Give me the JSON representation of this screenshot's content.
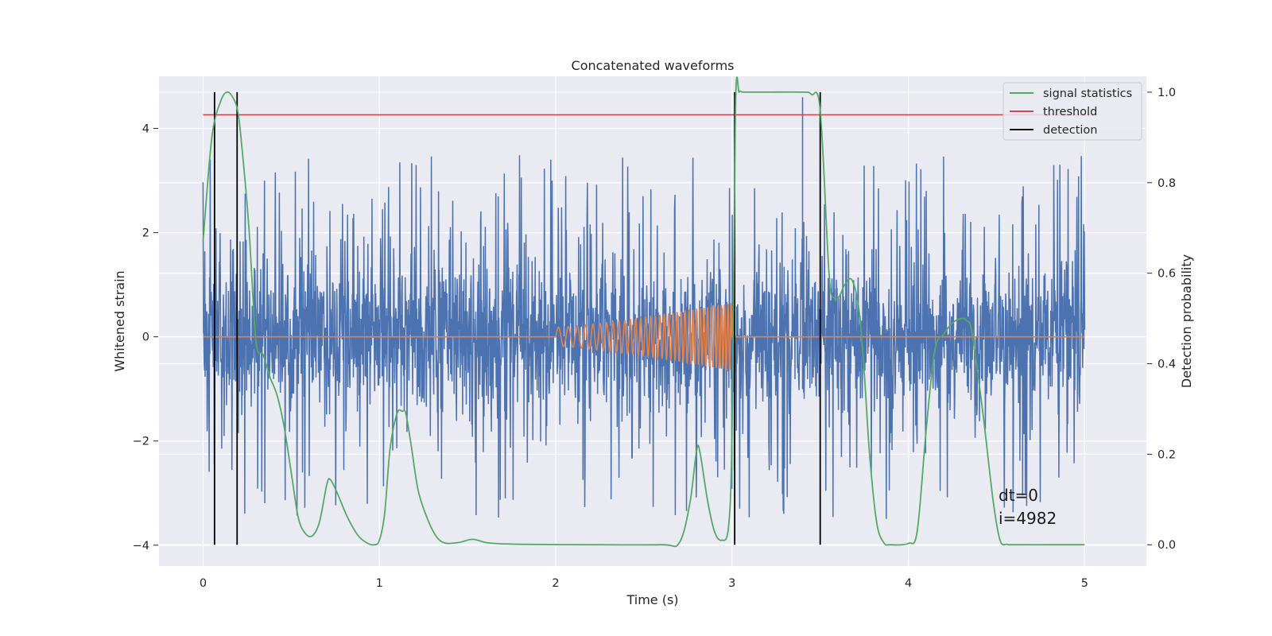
{
  "chart_data": {
    "type": "line",
    "title": "Concatenated waveforms",
    "xlabel": "Time (s)",
    "ylabel": "Whitened strain",
    "y2label": "Detection probability",
    "xlim": [
      -0.25,
      5.35
    ],
    "ylim": [
      -4.4,
      5.0
    ],
    "y2lim": [
      -0.047,
      1.035
    ],
    "xticks": [
      "0",
      "1",
      "2",
      "3",
      "4",
      "5"
    ],
    "yticks": [
      "−4",
      "−2",
      "0",
      "2",
      "4"
    ],
    "y2ticks": [
      "0.0",
      "0.2",
      "0.4",
      "0.6",
      "0.8",
      "1.0"
    ],
    "grid": true,
    "legend_position": "top-right",
    "colors": {
      "background": "#eaeaf2",
      "strain": "#4c72b0",
      "injection": "#dd8452",
      "signal_statistics": "#55a868",
      "threshold": "#c44e52",
      "detection": "#000000"
    },
    "legend": [
      {
        "label": "signal statistics",
        "color": "#55a868"
      },
      {
        "label": "threshold",
        "color": "#c44e52"
      },
      {
        "label": "detection",
        "color": "#000000"
      }
    ],
    "threshold_value": 0.95,
    "detections": [
      0.065,
      0.193,
      3.015,
      3.5
    ],
    "injection": {
      "start": 2.0,
      "end": 3.0,
      "amp_start": 0.18,
      "amp_end": 0.65,
      "f_start": 16,
      "f_end": 55
    },
    "strain": {
      "x_start": 0.0,
      "x_end": 5.0,
      "base_sigma": 0.95,
      "spike_max": 4.6
    },
    "signal_statistics": {
      "x": [
        0.0,
        0.05,
        0.1,
        0.14,
        0.18,
        0.2,
        0.22,
        0.26,
        0.3,
        0.34,
        0.38,
        0.42,
        0.46,
        0.5,
        0.54,
        0.58,
        0.62,
        0.66,
        0.7,
        0.72,
        0.76,
        0.82,
        0.88,
        0.93,
        0.97,
        1.0,
        1.03,
        1.06,
        1.1,
        1.13,
        1.15,
        1.18,
        1.22,
        1.27,
        1.32,
        1.37,
        1.45,
        1.53,
        1.62,
        1.8,
        2.2,
        2.6,
        2.7,
        2.76,
        2.8,
        2.82,
        2.86,
        2.9,
        2.94,
        2.98,
        3.0,
        3.02,
        3.04,
        3.06,
        3.1,
        3.2,
        3.4,
        3.45,
        3.5,
        3.55,
        3.58,
        3.61,
        3.64,
        3.68,
        3.72,
        3.75,
        3.78,
        3.82,
        3.86,
        3.9,
        4.0,
        4.05,
        4.1,
        4.15,
        4.2,
        4.25,
        4.3,
        4.33,
        4.36,
        4.42,
        4.48,
        4.52,
        4.56,
        4.6,
        4.8,
        5.0
      ],
      "y": [
        0.67,
        0.9,
        0.98,
        1.0,
        0.98,
        0.95,
        0.88,
        0.7,
        0.45,
        0.42,
        0.37,
        0.33,
        0.26,
        0.16,
        0.06,
        0.025,
        0.02,
        0.05,
        0.13,
        0.145,
        0.115,
        0.06,
        0.02,
        0.004,
        0.0,
        0.01,
        0.07,
        0.21,
        0.29,
        0.295,
        0.29,
        0.22,
        0.12,
        0.06,
        0.02,
        0.004,
        0.005,
        0.012,
        0.004,
        0.001,
        0.0,
        0.0,
        0.004,
        0.09,
        0.21,
        0.2,
        0.1,
        0.03,
        0.01,
        0.04,
        0.25,
        0.97,
        1.0,
        1.0,
        1.0,
        1.0,
        1.0,
        0.995,
        0.96,
        0.6,
        0.545,
        0.55,
        0.575,
        0.585,
        0.52,
        0.38,
        0.2,
        0.05,
        0.005,
        0.0,
        0.003,
        0.03,
        0.25,
        0.43,
        0.465,
        0.49,
        0.5,
        0.495,
        0.47,
        0.3,
        0.1,
        0.01,
        0.001,
        0.0,
        0.0,
        0.0
      ]
    },
    "annotations": [
      "dt=0",
      "i=4982"
    ]
  }
}
